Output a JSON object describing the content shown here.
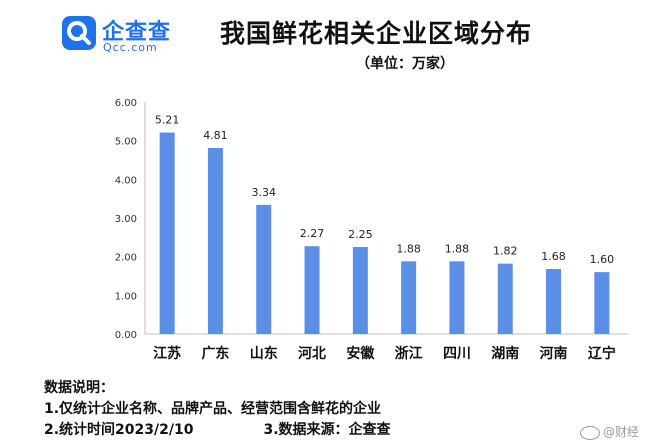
{
  "logo": {
    "name_cn": "企查查",
    "name_en": "Qcc.com",
    "color": "#1e73e8",
    "icon": "qcc-logo-icon"
  },
  "chart_data": {
    "type": "bar",
    "title": "我国鲜花相关企业区域分布",
    "subtitle": "（单位：万家）",
    "categories": [
      "江苏",
      "广东",
      "山东",
      "河北",
      "安徽",
      "浙江",
      "四川",
      "湖南",
      "河南",
      "辽宁"
    ],
    "values": [
      5.21,
      4.81,
      3.34,
      2.27,
      2.25,
      1.88,
      1.88,
      1.82,
      1.68,
      1.6
    ],
    "value_labels": [
      "5.21",
      "4.81",
      "3.34",
      "2.27",
      "2.25",
      "1.88",
      "1.88",
      "1.82",
      "1.68",
      "1.60"
    ],
    "yticks": [
      "0.00",
      "1.00",
      "2.00",
      "3.00",
      "4.00",
      "5.00",
      "6.00"
    ],
    "ylim": [
      0,
      6
    ],
    "grid": false,
    "bar_color": "#5b8fe6"
  },
  "notes": {
    "heading": "数据说明：",
    "item1": "1.仅统计企业名称、品牌产品、经营范围含鲜花的企业",
    "item2": "2.统计时间2023/2/10",
    "item3": "3.数据来源：企查查"
  },
  "watermark": {
    "text": "@财经",
    "icon": "weibo-icon"
  }
}
